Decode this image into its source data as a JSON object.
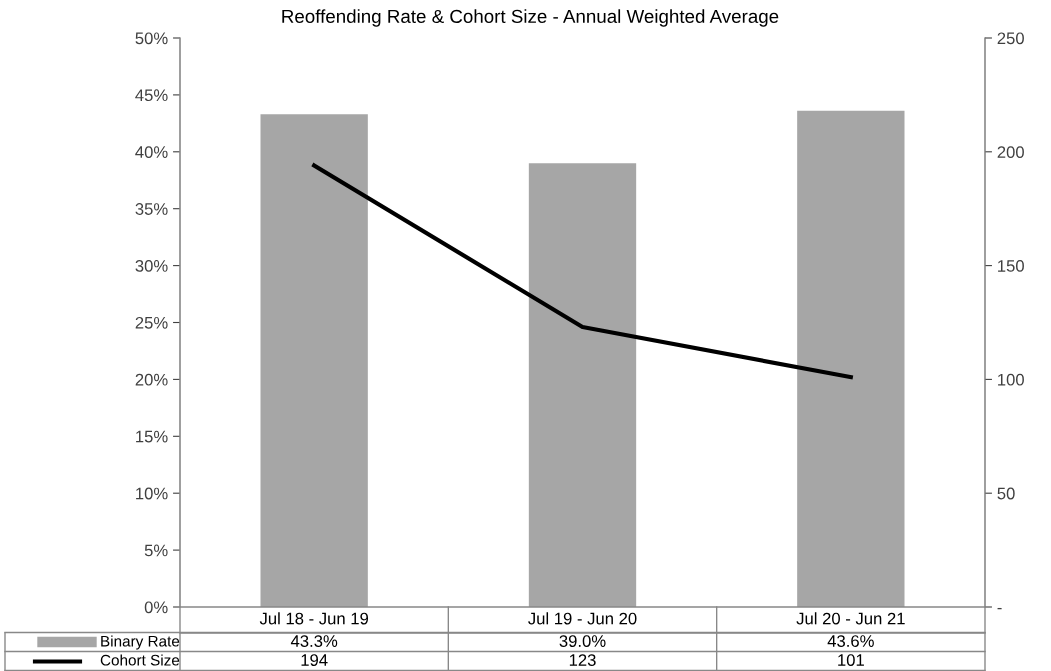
{
  "chart_data": {
    "type": "bar",
    "title": "Reoffending Rate & Cohort Size - Annual Weighted Average",
    "categories": [
      "Jul 18 - Jun 19",
      "Jul 19 - Jun 20",
      "Jul 20 - Jun 21"
    ],
    "series": [
      {
        "name": "Binary Rate",
        "color": "#a6a6a6",
        "values": [
          43.3,
          39.0,
          43.6
        ],
        "value_labels": [
          "43.3%",
          "39.0%",
          "43.6%"
        ]
      },
      {
        "name": "Cohort Size",
        "type": "line",
        "axis": "y2",
        "color": "#000000",
        "values": [
          194,
          123,
          101
        ],
        "value_labels": [
          "194",
          "123",
          "101"
        ]
      }
    ],
    "ylim": [
      0,
      50
    ],
    "yticks": [
      {
        "value": 0,
        "label": "0%"
      },
      {
        "value": 5,
        "label": "5%"
      },
      {
        "value": 10,
        "label": "10%"
      },
      {
        "value": 15,
        "label": "15%"
      },
      {
        "value": 20,
        "label": "20%"
      },
      {
        "value": 25,
        "label": "25%"
      },
      {
        "value": 30,
        "label": "30%"
      },
      {
        "value": 35,
        "label": "35%"
      },
      {
        "value": 40,
        "label": "40%"
      },
      {
        "value": 45,
        "label": "45%"
      },
      {
        "value": 50,
        "label": "50%"
      }
    ],
    "y2lim": [
      0,
      250
    ],
    "y2ticks": [
      {
        "value": 0,
        "label": "-"
      },
      50,
      100,
      150,
      200,
      250
    ],
    "legend": "bottom",
    "grid": false,
    "marker": "none",
    "line_style": "solid"
  }
}
